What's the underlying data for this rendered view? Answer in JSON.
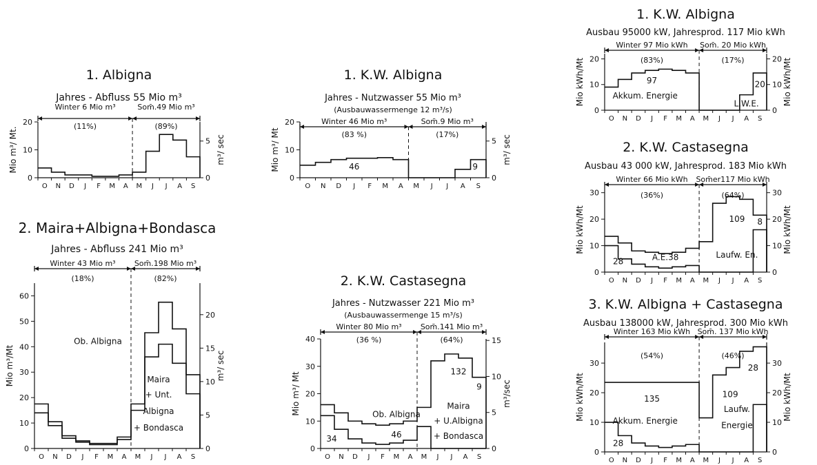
{
  "months": [
    "O",
    "N",
    "D",
    "J",
    "F",
    "M",
    "A",
    "M",
    "J",
    "J",
    "A",
    "S"
  ],
  "chart_data": [
    {
      "type": "line",
      "title": "1. Albigna",
      "subtitle": "Jahres - Abfluss 55 Mio m³",
      "ylabel": "Mio m³/ Mt.",
      "y2label": "m³/ sec",
      "ylim": [
        0,
        20
      ],
      "yticks": [
        "0",
        "10",
        "20"
      ],
      "y2ticks": [
        "0",
        "5"
      ],
      "y2values": [
        0,
        5
      ],
      "winter_label": "Winter 6 Mio m³",
      "winter_pct": "(11%)",
      "summer_label": "Som̄.49 Mio m³",
      "summer_pct": "(89%)",
      "series": [
        {
          "values": [
            3.5,
            2,
            1,
            1,
            0.5,
            0.5,
            1,
            2,
            9.5,
            15.5,
            13.5,
            7.5
          ]
        }
      ],
      "annotations": []
    },
    {
      "type": "line",
      "title": "1. K.W. Albigna",
      "subtitle": "Jahres - Nutzwasser 55 Mio m³",
      "subtitle2": "(Ausbauwassermenge 12 m³/s)",
      "ylabel": "Mio m³/ Mt",
      "y2label": "m³/ sec",
      "ylim": [
        0,
        20
      ],
      "yticks": [
        "0",
        "10",
        "20"
      ],
      "y2ticks": [
        "0",
        "5"
      ],
      "y2values": [
        0,
        5
      ],
      "winter_label": "Winter 46 Mio m³",
      "winter_pct": "(83 %)",
      "summer_label": "Som̄.9 Mio m³",
      "summer_pct": "(17%)",
      "series": [
        {
          "values": [
            4.5,
            5.5,
            6.5,
            7,
            7,
            7.2,
            6.5,
            0,
            0,
            0,
            3,
            6.5
          ]
        }
      ],
      "annotations": [
        {
          "text": "46",
          "x": 3.5,
          "y": 3
        },
        {
          "text": "9",
          "x": 11.3,
          "y": 3
        }
      ]
    },
    {
      "type": "line",
      "title": "2. Maira+Albigna+Bondasca",
      "subtitle": "Jahres - Abfluss 241 Mio m³",
      "ylabel": "Mio m³/Mt",
      "y2label": "m³/ sec",
      "ylim": [
        0,
        65
      ],
      "yticks": [
        "0",
        "10",
        "20",
        "30",
        "40",
        "50",
        "60"
      ],
      "y2ticks": [
        "0",
        "5",
        "10",
        "15",
        "20"
      ],
      "y2values": [
        0,
        5,
        10,
        15,
        20
      ],
      "winter_label": "Winter 43 Mio m³",
      "winter_pct": "(18%)",
      "summer_label": "Som̄.198 Mio m³",
      "summer_pct": "(82%)",
      "series": [
        {
          "values": [
            17.5,
            10.5,
            5,
            3,
            2,
            2,
            4.5,
            17.5,
            45.5,
            57.5,
            47,
            29
          ]
        },
        {
          "values": [
            14,
            9,
            4,
            2.5,
            1.5,
            1.5,
            3.5,
            15,
            36,
            41,
            33.5,
            21.5
          ]
        }
      ],
      "annotations": [
        {
          "text": "Ob. Albigna",
          "x": 4.6,
          "y": 41
        },
        {
          "text": "Maira",
          "x": 9.0,
          "y": 26
        },
        {
          "text": "+ Unt.",
          "x": 9.0,
          "y": 20
        },
        {
          "text": "Albigna",
          "x": 9.0,
          "y": 13.5
        },
        {
          "text": "+ Bondasca",
          "x": 9.0,
          "y": 7
        }
      ]
    },
    {
      "type": "line",
      "title": "2. K.W. Castasegna",
      "subtitle": "Jahres - Nutzwasser 221 Mio m³",
      "subtitle2": "(Ausbauwassermenge 15 m³/s)",
      "ylabel": "Mio m³/ Mt",
      "y2label": "m³/sec",
      "ylim": [
        0,
        40
      ],
      "yticks": [
        "0",
        "10",
        "20",
        "30",
        "40"
      ],
      "y2ticks": [
        "0",
        "5",
        "10",
        "15"
      ],
      "y2values": [
        0,
        5,
        10,
        15
      ],
      "winter_label": "Winter 80 Mio m³",
      "winter_pct": "(36 %)",
      "summer_label": "Som̄.141 Mio m³",
      "summer_pct": "(64%)",
      "series": [
        {
          "values": [
            16,
            13,
            10,
            9,
            8.5,
            9,
            10,
            15,
            32,
            34.5,
            33,
            26
          ]
        },
        {
          "values": [
            12,
            7,
            3.5,
            2,
            1.5,
            2,
            3,
            8,
            0,
            0,
            0,
            0
          ]
        }
      ],
      "annotations": [
        {
          "text": "Ob. Albigna",
          "x": 5.5,
          "y": 11.5
        },
        {
          "text": "34",
          "x": 0.8,
          "y": 2.5
        },
        {
          "text": "46",
          "x": 5.5,
          "y": 4
        },
        {
          "text": "132",
          "x": 10.0,
          "y": 27
        },
        {
          "text": "9",
          "x": 11.5,
          "y": 21.5
        },
        {
          "text": "Maira",
          "x": 10.0,
          "y": 14.5
        },
        {
          "text": "+ U.Albigna",
          "x": 10.0,
          "y": 9
        },
        {
          "text": "+ Bondasca",
          "x": 10.0,
          "y": 3.5
        }
      ]
    },
    {
      "type": "line",
      "title": "1. K.W. Albigna",
      "subtitle": "Ausbau 95000 kW, Jahresprod. 117 Mio kWh",
      "ylabel": "Mio kWh/Mt",
      "y2label": "Mio kWh/Mt",
      "ylim": [
        0,
        22
      ],
      "yticks": [
        "0",
        "10",
        "20"
      ],
      "y2ticks": [
        "0",
        "10",
        "20"
      ],
      "y2values": [
        0,
        10,
        20
      ],
      "winter_label": "Winter 97 Mio kWh",
      "winter_pct": "(83%)",
      "summer_label": "Som̄. 20 Mio kWh",
      "summer_pct": "(17%)",
      "series": [
        {
          "values": [
            9,
            12,
            14.5,
            15.5,
            16,
            15.5,
            14.5,
            0,
            0,
            0,
            6,
            14.5
          ]
        }
      ],
      "annotations": [
        {
          "text": "97",
          "x": 3.5,
          "y": 10.5
        },
        {
          "text": "Akkum. Energie",
          "x": 3.0,
          "y": 4.5
        },
        {
          "text": "20",
          "x": 11.5,
          "y": 9
        },
        {
          "text": "L.W.E.",
          "x": 10.5,
          "y": 1.5
        }
      ]
    },
    {
      "type": "line",
      "title": "2. K.W. Castasegna",
      "subtitle": "Ausbau 43 000 kW, Jahresprod. 183 Mio kWh",
      "ylabel": "Mio kWh/Mt",
      "y2label": "Mio kWh/Mt",
      "ylim": [
        0,
        32
      ],
      "yticks": [
        "0",
        "10",
        "20",
        "30"
      ],
      "y2ticks": [
        "0",
        "10",
        "20",
        "30"
      ],
      "y2values": [
        0,
        10,
        20,
        30
      ],
      "winter_label": "Winter 66 Mio kWh",
      "winter_pct": "(36%)",
      "summer_label": "Som̄er117 Mio kWh",
      "summer_pct": "(64%)",
      "series": [
        {
          "values": [
            13.5,
            11,
            8,
            7.5,
            7,
            7.5,
            9,
            11.5,
            26,
            28.5,
            27.5,
            21.5
          ]
        },
        {
          "values": [
            10,
            5,
            3,
            2,
            1.5,
            2,
            2.5,
            0,
            0,
            0,
            0,
            16
          ]
        }
      ],
      "annotations": [
        {
          "text": "28",
          "x": 1.0,
          "y": 3
        },
        {
          "text": "A.E.38",
          "x": 4.5,
          "y": 4.5
        },
        {
          "text": "109",
          "x": 9.8,
          "y": 19
        },
        {
          "text": "8",
          "x": 11.5,
          "y": 18
        },
        {
          "text": "Laufw. En.",
          "x": 9.8,
          "y": 5.5
        }
      ]
    },
    {
      "type": "line",
      "title": "3. K.W. Albigna + Castasegna",
      "subtitle": "Ausbau 138000 kW, Jahresprod. 300 Mio kWh",
      "ylabel": "Mio kWh/Mt",
      "y2label": "Mio kWh/Mt",
      "ylim": [
        0,
        37
      ],
      "yticks": [
        "0",
        "10",
        "20",
        "30"
      ],
      "y2ticks": [
        "0",
        "10",
        "20",
        "30"
      ],
      "y2values": [
        0,
        10,
        20,
        30
      ],
      "winter_label": "Winter 163 Mio kWh",
      "winter_pct": "(54%)",
      "summer_label": "Som̄. 137 Mio kWh",
      "summer_pct": "(46%)",
      "series": [
        {
          "values": [
            23.5,
            23.5,
            23.5,
            23.5,
            23.5,
            23.5,
            23.5,
            11.5,
            26,
            28.5,
            34,
            35.5
          ]
        },
        {
          "values": [
            10,
            5.5,
            3,
            2,
            1.5,
            2,
            2.5,
            0,
            0,
            0,
            0,
            16
          ]
        }
      ],
      "annotations": [
        {
          "text": "135",
          "x": 3.5,
          "y": 17
        },
        {
          "text": "Akkum. Energie",
          "x": 3.0,
          "y": 9.5
        },
        {
          "text": "28",
          "x": 1.0,
          "y": 2
        },
        {
          "text": "109",
          "x": 9.3,
          "y": 18.5
        },
        {
          "text": "28",
          "x": 11.0,
          "y": 27.5
        },
        {
          "text": "Laufw.",
          "x": 9.8,
          "y": 13.5
        },
        {
          "text": "Energie",
          "x": 9.8,
          "y": 8
        }
      ]
    }
  ]
}
